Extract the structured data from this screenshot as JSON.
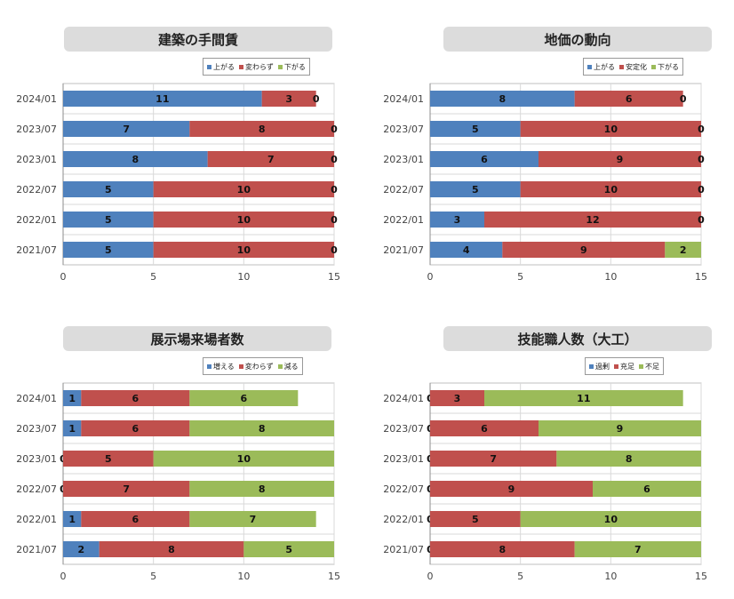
{
  "colors": {
    "blue": "#4f81bd",
    "red": "#c0504d",
    "green": "#9bbb59"
  },
  "chart_data": [
    {
      "type": "bar",
      "stacked": true,
      "orientation": "horizontal",
      "title": "建築の手間賃",
      "categories": [
        "2024/01",
        "2023/07",
        "2023/01",
        "2022/07",
        "2022/01",
        "2021/07"
      ],
      "series": [
        {
          "name": "上がる",
          "color": "#4f81bd",
          "values": [
            11,
            7,
            8,
            5,
            5,
            5
          ]
        },
        {
          "name": "変わらず",
          "color": "#c0504d",
          "values": [
            3,
            8,
            7,
            10,
            10,
            10
          ]
        },
        {
          "name": "下がる",
          "color": "#9bbb59",
          "values": [
            0,
            0,
            0,
            0,
            0,
            0
          ]
        }
      ],
      "xlim": [
        0,
        15
      ],
      "xticks": [
        0,
        5,
        10,
        15
      ],
      "legend": "top-right",
      "grid": true
    },
    {
      "type": "bar",
      "stacked": true,
      "orientation": "horizontal",
      "title": "地価の動向",
      "categories": [
        "2024/01",
        "2023/07",
        "2023/01",
        "2022/07",
        "2022/01",
        "2021/07"
      ],
      "series": [
        {
          "name": "上がる",
          "color": "#4f81bd",
          "values": [
            8,
            5,
            6,
            5,
            3,
            4
          ]
        },
        {
          "name": "安定化",
          "color": "#c0504d",
          "values": [
            6,
            10,
            9,
            10,
            12,
            9
          ]
        },
        {
          "name": "下がる",
          "color": "#9bbb59",
          "values": [
            0,
            0,
            0,
            0,
            0,
            2
          ]
        }
      ],
      "xlim": [
        0,
        15
      ],
      "xticks": [
        0,
        5,
        10,
        15
      ],
      "legend": "top-right",
      "grid": true
    },
    {
      "type": "bar",
      "stacked": true,
      "orientation": "horizontal",
      "title": "展示場来場者数",
      "categories": [
        "2024/01",
        "2023/07",
        "2023/01",
        "2022/07",
        "2022/01",
        "2021/07"
      ],
      "series": [
        {
          "name": "増える",
          "color": "#4f81bd",
          "values": [
            1,
            1,
            0,
            0,
            1,
            2
          ]
        },
        {
          "name": "変わらず",
          "color": "#c0504d",
          "values": [
            6,
            6,
            5,
            7,
            6,
            8
          ]
        },
        {
          "name": "減る",
          "color": "#9bbb59",
          "values": [
            6,
            8,
            10,
            8,
            7,
            5
          ]
        }
      ],
      "xlim": [
        0,
        15
      ],
      "xticks": [
        0,
        5,
        10,
        15
      ],
      "legend": "top-right",
      "grid": true
    },
    {
      "type": "bar",
      "stacked": true,
      "orientation": "horizontal",
      "title": "技能職人数（大工）",
      "categories": [
        "2024/01",
        "2023/07",
        "2023/01",
        "2022/07",
        "2022/01",
        "2021/07"
      ],
      "series": [
        {
          "name": "過剰",
          "color": "#4f81bd",
          "values": [
            0,
            0,
            0,
            0,
            0,
            0
          ]
        },
        {
          "name": "充足",
          "color": "#c0504d",
          "values": [
            3,
            6,
            7,
            9,
            5,
            8
          ]
        },
        {
          "name": "不足",
          "color": "#9bbb59",
          "values": [
            11,
            9,
            8,
            6,
            10,
            7
          ]
        }
      ],
      "xlim": [
        0,
        15
      ],
      "xticks": [
        0,
        5,
        10,
        15
      ],
      "legend": "top-right",
      "grid": true
    }
  ]
}
